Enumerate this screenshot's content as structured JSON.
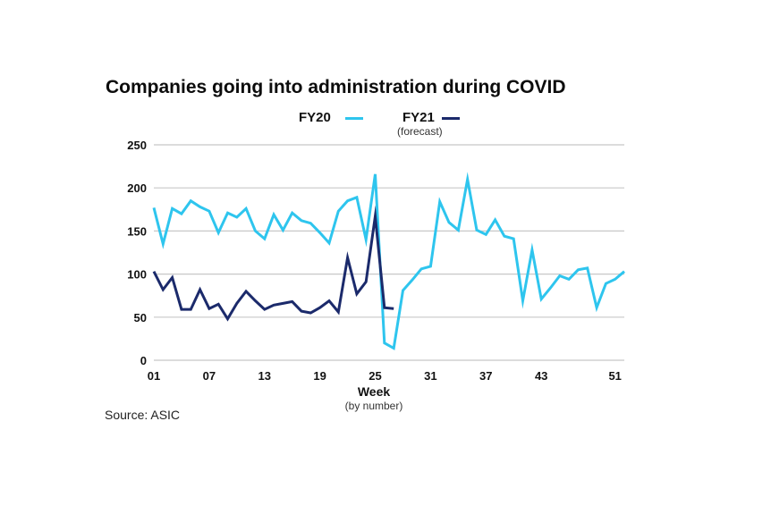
{
  "colors": {
    "fy20": "#2ec5ee",
    "fy21": "#1b2a6b",
    "grid": "#c8c8c8"
  },
  "chart_data": {
    "type": "line",
    "title": "Companies going into administration during COVID",
    "xlabel": "Week",
    "xlabel_note": "(by number)",
    "ylabel": "",
    "ylim": [
      0,
      250
    ],
    "xlim": [
      1,
      52
    ],
    "yticks": [
      "0",
      "50",
      "100",
      "150",
      "200",
      "250"
    ],
    "xticks": [
      "01",
      "07",
      "13",
      "19",
      "25",
      "31",
      "37",
      "43",
      "51"
    ],
    "grid": true,
    "legend_position": "top-center",
    "source": "Source: ASIC",
    "series": [
      {
        "name": "FY20",
        "note": "",
        "x": [
          1,
          2,
          3,
          4,
          5,
          6,
          7,
          8,
          9,
          10,
          11,
          12,
          13,
          14,
          15,
          16,
          17,
          18,
          19,
          20,
          21,
          22,
          23,
          24,
          25,
          26,
          27,
          28,
          29,
          30,
          31,
          32,
          33,
          34,
          35,
          36,
          37,
          38,
          39,
          40,
          41,
          42,
          43,
          44,
          45,
          46,
          47,
          48,
          49,
          50,
          51,
          52
        ],
        "values": [
          177,
          135,
          176,
          170,
          185,
          178,
          173,
          148,
          171,
          166,
          176,
          150,
          141,
          169,
          151,
          171,
          162,
          159,
          148,
          136,
          173,
          185,
          189,
          140,
          216,
          20,
          14,
          81,
          93,
          106,
          109,
          184,
          160,
          151,
          210,
          151,
          146,
          163,
          144,
          141,
          69,
          128,
          71,
          84,
          98,
          94,
          105,
          107,
          61,
          89,
          94,
          103
        ]
      },
      {
        "name": "FY21",
        "note": "(forecast)",
        "x": [
          1,
          2,
          3,
          4,
          5,
          6,
          7,
          8,
          9,
          10,
          11,
          12,
          13,
          14,
          15,
          16,
          17,
          18,
          19,
          20,
          21,
          22,
          23,
          24,
          25,
          26,
          27
        ],
        "values": [
          103,
          82,
          96,
          59,
          59,
          82,
          60,
          65,
          48,
          66,
          80,
          69,
          59,
          64,
          66,
          68,
          57,
          55,
          61,
          69,
          56,
          119,
          77,
          91,
          167,
          61,
          60
        ]
      }
    ]
  }
}
